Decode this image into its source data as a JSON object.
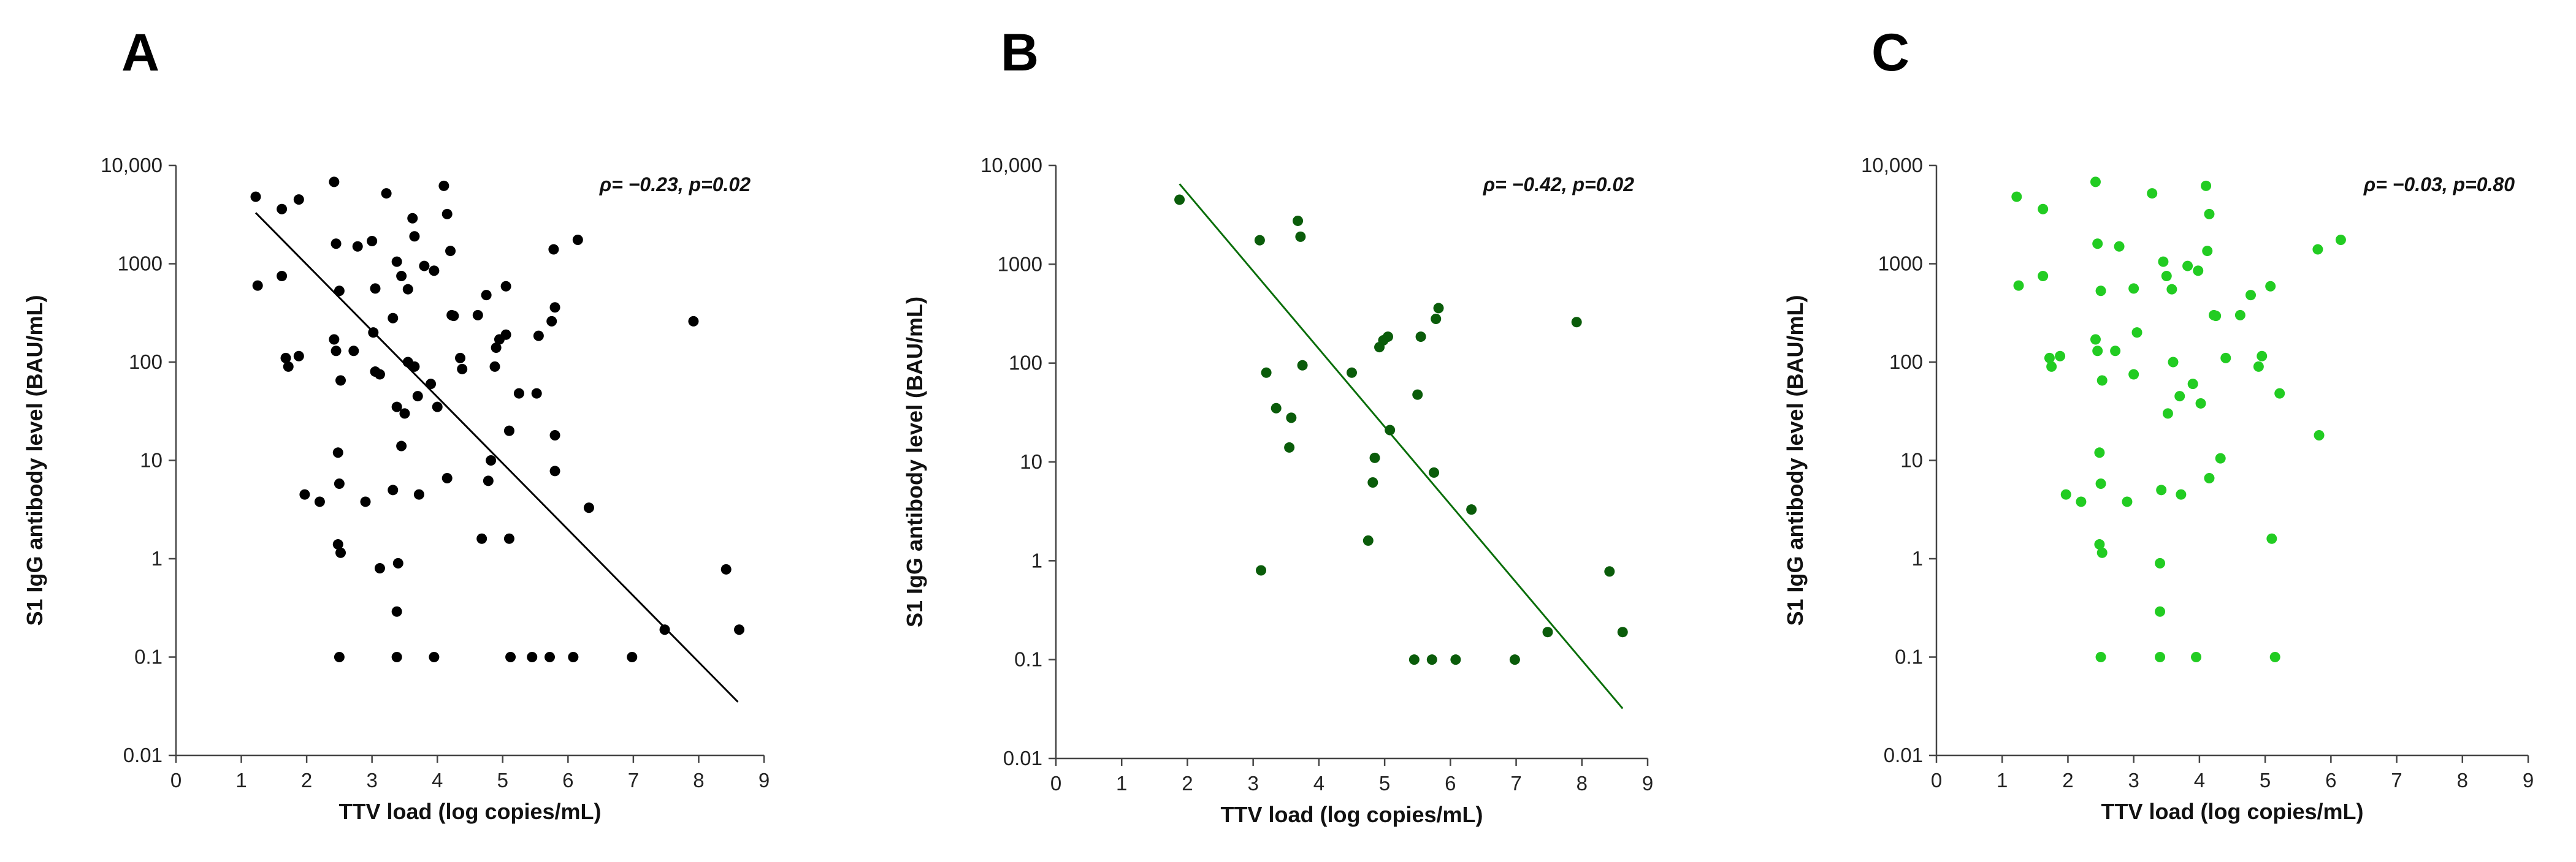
{
  "chart_data": [
    {
      "type": "scatter",
      "panel": "A",
      "point_color": "#000000",
      "line_color": "#000000",
      "stat": "ρ= −0.23, p=0.02",
      "xlabel": "TTV load (log copies/mL)",
      "ylabel": "S1 IgG antibody level (BAU/mL)",
      "xlim": [
        0,
        9
      ],
      "ylim": [
        0.01,
        10000
      ],
      "yscale": "log",
      "xticks": [
        "0",
        "1",
        "2",
        "3",
        "4",
        "5",
        "6",
        "7",
        "8",
        "9"
      ],
      "yticks": [
        {
          "value": 0.01,
          "label": "0.01"
        },
        {
          "value": 0.1,
          "label": "0.1"
        },
        {
          "value": 1,
          "label": "1"
        },
        {
          "value": 10,
          "label": "10"
        },
        {
          "value": 100,
          "label": "100"
        },
        {
          "value": 1000,
          "label": "1000"
        },
        {
          "value": 10000,
          "label": "10,000"
        }
      ],
      "fit_line": {
        "x": [
          1.22,
          8.6
        ],
        "y": [
          3300,
          0.035
        ]
      },
      "points": [
        [
          1.22,
          4800
        ],
        [
          1.25,
          600
        ],
        [
          1.62,
          3600
        ],
        [
          1.88,
          4500
        ],
        [
          1.62,
          750
        ],
        [
          1.68,
          110
        ],
        [
          1.72,
          90
        ],
        [
          1.88,
          115
        ],
        [
          1.97,
          4.5
        ],
        [
          2.2,
          3.8
        ],
        [
          2.42,
          6800
        ],
        [
          2.45,
          1600
        ],
        [
          2.42,
          170
        ],
        [
          2.45,
          130
        ],
        [
          2.5,
          530
        ],
        [
          2.52,
          65
        ],
        [
          2.48,
          12
        ],
        [
          2.5,
          5.8
        ],
        [
          2.48,
          1.4
        ],
        [
          2.52,
          1.15
        ],
        [
          2.5,
          0.1
        ],
        [
          2.72,
          130
        ],
        [
          2.78,
          1500
        ],
        [
          2.9,
          3.8
        ],
        [
          3.0,
          1700
        ],
        [
          3.05,
          560
        ],
        [
          3.02,
          200
        ],
        [
          3.05,
          80
        ],
        [
          3.12,
          0.8
        ],
        [
          3.12,
          75
        ],
        [
          3.22,
          5200
        ],
        [
          3.32,
          280
        ],
        [
          3.38,
          1050
        ],
        [
          3.4,
          0.9
        ],
        [
          3.38,
          0.29
        ],
        [
          3.38,
          0.1
        ],
        [
          3.32,
          5
        ],
        [
          3.38,
          35
        ],
        [
          3.45,
          750
        ],
        [
          3.45,
          14
        ],
        [
          3.5,
          30
        ],
        [
          3.55,
          550
        ],
        [
          3.55,
          100
        ],
        [
          3.62,
          2900
        ],
        [
          3.65,
          1900
        ],
        [
          3.65,
          90
        ],
        [
          3.7,
          45
        ],
        [
          3.72,
          4.5
        ],
        [
          3.8,
          950
        ],
        [
          3.9,
          60
        ],
        [
          3.95,
          850
        ],
        [
          3.95,
          0.1
        ],
        [
          4.0,
          35
        ],
        [
          4.1,
          6200
        ],
        [
          4.15,
          3200
        ],
        [
          4.15,
          6.6
        ],
        [
          4.2,
          1350
        ],
        [
          4.22,
          300
        ],
        [
          4.25,
          295
        ],
        [
          4.35,
          110
        ],
        [
          4.38,
          85
        ],
        [
          4.62,
          300
        ],
        [
          4.68,
          1.6
        ],
        [
          4.75,
          480
        ],
        [
          4.78,
          6.2
        ],
        [
          4.82,
          10
        ],
        [
          4.88,
          90
        ],
        [
          4.9,
          140
        ],
        [
          4.95,
          170
        ],
        [
          5.05,
          190
        ],
        [
          5.05,
          590
        ],
        [
          5.1,
          1.6
        ],
        [
          5.1,
          20
        ],
        [
          5.12,
          0.1
        ],
        [
          5.25,
          48
        ],
        [
          5.45,
          0.1
        ],
        [
          5.52,
          48
        ],
        [
          5.55,
          185
        ],
        [
          5.72,
          0.1
        ],
        [
          5.78,
          1400
        ],
        [
          5.75,
          260
        ],
        [
          5.8,
          360
        ],
        [
          5.8,
          7.8
        ],
        [
          5.8,
          18
        ],
        [
          6.08,
          0.1
        ],
        [
          6.15,
          1750
        ],
        [
          6.32,
          3.3
        ],
        [
          6.98,
          0.1
        ],
        [
          7.48,
          0.19
        ],
        [
          7.92,
          260
        ],
        [
          8.42,
          0.78
        ],
        [
          8.62,
          0.19
        ]
      ]
    },
    {
      "type": "scatter",
      "panel": "B",
      "point_color": "#0a5c0a",
      "line_color": "#0a6e0a",
      "stat": "ρ= −0.42, p=0.02",
      "xlabel": "TTV load (log copies/mL)",
      "ylabel": "S1 IgG antibody level (BAU/mL)",
      "xlim": [
        0,
        9
      ],
      "ylim": [
        0.01,
        10000
      ],
      "yscale": "log",
      "xticks": [
        "0",
        "1",
        "2",
        "3",
        "4",
        "5",
        "6",
        "7",
        "8",
        "9"
      ],
      "yticks": [
        {
          "value": 0.01,
          "label": "0.01"
        },
        {
          "value": 0.1,
          "label": "0.1"
        },
        {
          "value": 1,
          "label": "1"
        },
        {
          "value": 10,
          "label": "10"
        },
        {
          "value": 100,
          "label": "100"
        },
        {
          "value": 1000,
          "label": "1000"
        },
        {
          "value": 10000,
          "label": "10,000"
        }
      ],
      "fit_line": {
        "x": [
          1.88,
          8.62
        ],
        "y": [
          6500,
          0.032
        ]
      },
      "points": [
        [
          1.88,
          4500
        ],
        [
          3.1,
          1750
        ],
        [
          3.12,
          0.8
        ],
        [
          3.2,
          80
        ],
        [
          3.35,
          35
        ],
        [
          3.55,
          14
        ],
        [
          3.58,
          28
        ],
        [
          3.68,
          2750
        ],
        [
          3.72,
          1900
        ],
        [
          3.75,
          95
        ],
        [
          4.5,
          80
        ],
        [
          4.75,
          1.6
        ],
        [
          4.82,
          6.2
        ],
        [
          4.85,
          11
        ],
        [
          4.92,
          145
        ],
        [
          4.98,
          170
        ],
        [
          5.05,
          185
        ],
        [
          5.08,
          21
        ],
        [
          5.45,
          0.1
        ],
        [
          5.5,
          48
        ],
        [
          5.55,
          185
        ],
        [
          5.72,
          0.1
        ],
        [
          5.75,
          7.8
        ],
        [
          5.78,
          280
        ],
        [
          5.82,
          360
        ],
        [
          6.08,
          0.1
        ],
        [
          6.32,
          3.3
        ],
        [
          6.98,
          0.1
        ],
        [
          7.48,
          0.19
        ],
        [
          7.92,
          260
        ],
        [
          8.42,
          0.78
        ],
        [
          8.62,
          0.19
        ]
      ]
    },
    {
      "type": "scatter",
      "panel": "C",
      "point_color": "#22cc22",
      "line_color": "#22cc22",
      "stat": "ρ= −0.03, p=0.80",
      "xlabel": "TTV load (log copies/mL)",
      "ylabel": "S1 IgG antibody level (BAU/mL)",
      "xlim": [
        0,
        9
      ],
      "ylim": [
        0.01,
        10000
      ],
      "yscale": "log",
      "xticks": [
        "0",
        "1",
        "2",
        "3",
        "4",
        "5",
        "6",
        "7",
        "8",
        "9"
      ],
      "yticks": [
        {
          "value": 0.01,
          "label": "0.01"
        },
        {
          "value": 0.1,
          "label": "0.1"
        },
        {
          "value": 1,
          "label": "1"
        },
        {
          "value": 10,
          "label": "10"
        },
        {
          "value": 100,
          "label": "100"
        },
        {
          "value": 1000,
          "label": "1000"
        },
        {
          "value": 10000,
          "label": "10,000"
        }
      ],
      "fit_line": null,
      "points": [
        [
          1.22,
          4800
        ],
        [
          1.25,
          600
        ],
        [
          1.62,
          3600
        ],
        [
          1.62,
          750
        ],
        [
          1.72,
          110
        ],
        [
          1.75,
          90
        ],
        [
          1.88,
          115
        ],
        [
          1.97,
          4.5
        ],
        [
          2.2,
          3.8
        ],
        [
          2.42,
          6800
        ],
        [
          2.45,
          1600
        ],
        [
          2.42,
          170
        ],
        [
          2.45,
          130
        ],
        [
          2.5,
          530
        ],
        [
          2.52,
          65
        ],
        [
          2.48,
          12
        ],
        [
          2.5,
          5.8
        ],
        [
          2.48,
          1.4
        ],
        [
          2.52,
          1.15
        ],
        [
          2.5,
          0.1
        ],
        [
          2.72,
          130
        ],
        [
          2.78,
          1500
        ],
        [
          2.9,
          3.8
        ],
        [
          3.0,
          560
        ],
        [
          3.0,
          75
        ],
        [
          3.05,
          200
        ],
        [
          3.28,
          5200
        ],
        [
          3.4,
          0.9
        ],
        [
          3.4,
          0.29
        ],
        [
          3.4,
          0.1
        ],
        [
          3.42,
          5
        ],
        [
          3.45,
          1050
        ],
        [
          3.5,
          750
        ],
        [
          3.52,
          30
        ],
        [
          3.58,
          550
        ],
        [
          3.6,
          100
        ],
        [
          3.7,
          45
        ],
        [
          3.72,
          4.5
        ],
        [
          3.82,
          950
        ],
        [
          3.9,
          60
        ],
        [
          3.95,
          0.1
        ],
        [
          3.98,
          850
        ],
        [
          4.02,
          38
        ],
        [
          4.1,
          6200
        ],
        [
          4.12,
          1350
        ],
        [
          4.15,
          3200
        ],
        [
          4.15,
          6.6
        ],
        [
          4.22,
          300
        ],
        [
          4.25,
          295
        ],
        [
          4.32,
          10.5
        ],
        [
          4.4,
          110
        ],
        [
          4.62,
          300
        ],
        [
          4.78,
          480
        ],
        [
          4.9,
          90
        ],
        [
          4.95,
          115
        ],
        [
          5.08,
          590
        ],
        [
          5.1,
          1.6
        ],
        [
          5.15,
          0.1
        ],
        [
          5.22,
          48
        ],
        [
          5.8,
          1400
        ],
        [
          5.82,
          18
        ],
        [
          6.15,
          1750
        ]
      ]
    }
  ]
}
